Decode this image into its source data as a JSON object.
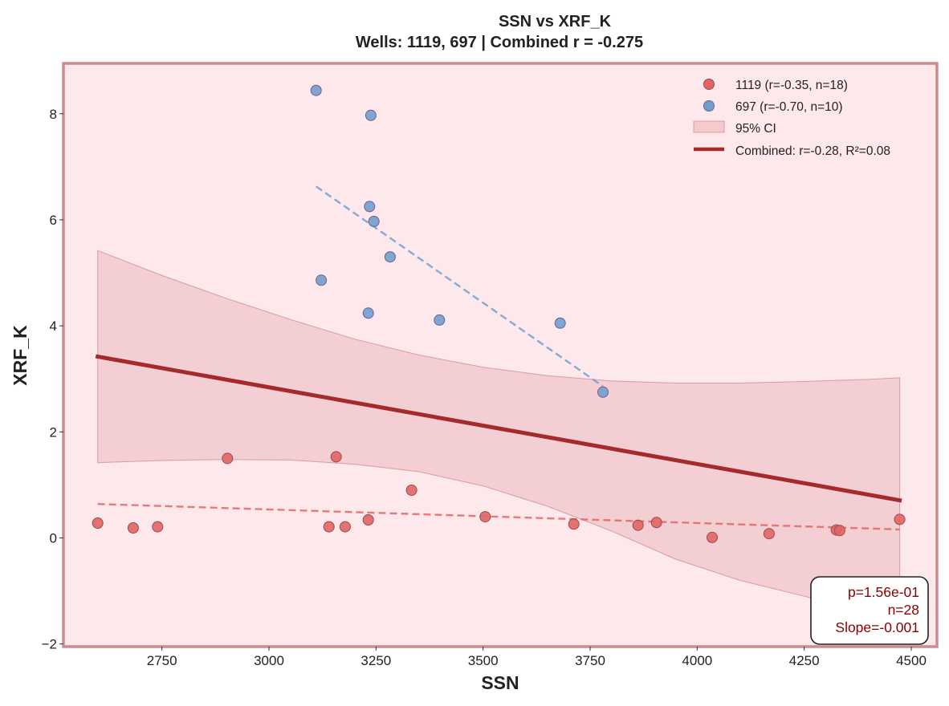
{
  "chart_data": {
    "type": "scatter",
    "title": "SSN vs XRF_K",
    "subtitle": "Wells: 1119, 697 | Combined r = -0.275",
    "xlabel": "SSN",
    "ylabel": "XRF_K",
    "xlim": [
      2520,
      4560
    ],
    "ylim": [
      -2.05,
      8.95
    ],
    "xticks": [
      2750,
      3000,
      3250,
      3500,
      3750,
      4000,
      4250,
      4500
    ],
    "yticks": [
      -2,
      0,
      2,
      4,
      6,
      8
    ],
    "ytick_labels": [
      "−2",
      "0",
      "2",
      "4",
      "6",
      "8"
    ],
    "grid": false,
    "legend_position": "top-right",
    "colors": {
      "plot_background": "#fde8ec",
      "frame": "#cd8b8e",
      "series_1119": "#e06666",
      "series_697": "#6f9fd0",
      "ci_fill": "#e9b3b8",
      "combined_line": "#a52a2a",
      "stats_text": "#8b0000"
    },
    "series": [
      {
        "name": "1119 (r=-0.35, n=18)",
        "color": "#e06666",
        "points": [
          [
            2600,
            0.28
          ],
          [
            2683,
            0.19
          ],
          [
            2740,
            0.21
          ],
          [
            2903,
            1.5
          ],
          [
            3140,
            0.21
          ],
          [
            3157,
            1.53
          ],
          [
            3178,
            0.21
          ],
          [
            3232,
            0.34
          ],
          [
            3333,
            0.9
          ],
          [
            3505,
            0.4
          ],
          [
            3712,
            0.26
          ],
          [
            3862,
            0.24
          ],
          [
            3905,
            0.29
          ],
          [
            4035,
            0.01
          ],
          [
            4168,
            0.08
          ],
          [
            4325,
            0.15
          ],
          [
            4333,
            0.14
          ],
          [
            4473,
            0.35
          ]
        ],
        "trend": {
          "x": [
            2600,
            4473
          ],
          "y": [
            0.64,
            0.16
          ]
        }
      },
      {
        "name": "697 (r=-0.70, n=10)",
        "color": "#6f9fd0",
        "points": [
          [
            3110,
            8.44
          ],
          [
            3122,
            4.86
          ],
          [
            3232,
            4.24
          ],
          [
            3235,
            6.25
          ],
          [
            3238,
            7.97
          ],
          [
            3245,
            5.97
          ],
          [
            3283,
            5.3
          ],
          [
            3398,
            4.11
          ],
          [
            3680,
            4.05
          ],
          [
            3780,
            2.75
          ]
        ],
        "trend": {
          "x": [
            3110,
            3780
          ],
          "y": [
            6.63,
            2.86
          ]
        }
      }
    ],
    "ci": {
      "label": "95% CI",
      "x": [
        2600,
        2750,
        2900,
        3050,
        3200,
        3350,
        3500,
        3650,
        3800,
        3950,
        4100,
        4250,
        4400,
        4473
      ],
      "upper": [
        5.42,
        4.95,
        4.52,
        4.12,
        3.75,
        3.45,
        3.22,
        3.06,
        2.96,
        2.92,
        2.92,
        2.95,
        2.99,
        3.02
      ],
      "lower": [
        1.42,
        1.46,
        1.48,
        1.47,
        1.39,
        1.25,
        0.98,
        0.6,
        0.13,
        -0.4,
        -0.8,
        -1.1,
        -1.4,
        -1.53
      ]
    },
    "combined": {
      "label": "Combined: r=-0.28, R²=0.08",
      "x": [
        2600,
        4473
      ],
      "y": [
        3.42,
        0.71
      ]
    },
    "stats": {
      "p": "p=1.56e-01",
      "n": "n=28",
      "slope": "Slope=-0.001"
    }
  }
}
